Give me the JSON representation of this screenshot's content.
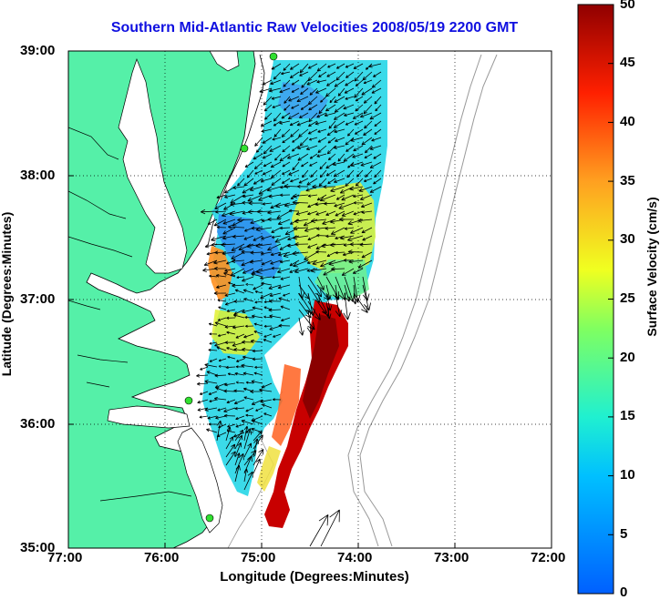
{
  "map": {
    "title": "Southern Mid-Atlantic Raw Velocities 2008/05/19 2200 GMT",
    "xlabel": "Longitude (Degrees:Minutes)",
    "ylabel": "Latitude (Degrees:Minutes)",
    "xticks": [
      "77:00",
      "76:00",
      "75:00",
      "74:00",
      "73:00",
      "72:00"
    ],
    "yticks": [
      "39:00",
      "38:00",
      "37:00",
      "36:00",
      "35:00"
    ],
    "grid": true,
    "land_color": "#55f0a8",
    "coast_color": "#000000",
    "station_color": "#30e030",
    "arrow_color": "#000000"
  },
  "colorbar": {
    "label": "Surface Velocity (cm/s)",
    "ticks": [
      "50",
      "45",
      "40",
      "35",
      "30",
      "25",
      "20",
      "15",
      "10",
      "5",
      "0"
    ],
    "range": [
      0,
      50
    ],
    "colors": [
      "#0060ff",
      "#00c0ff",
      "#20f0d0",
      "#80ff60",
      "#f0ff20",
      "#ffa020",
      "#ff2000",
      "#900000"
    ]
  }
}
